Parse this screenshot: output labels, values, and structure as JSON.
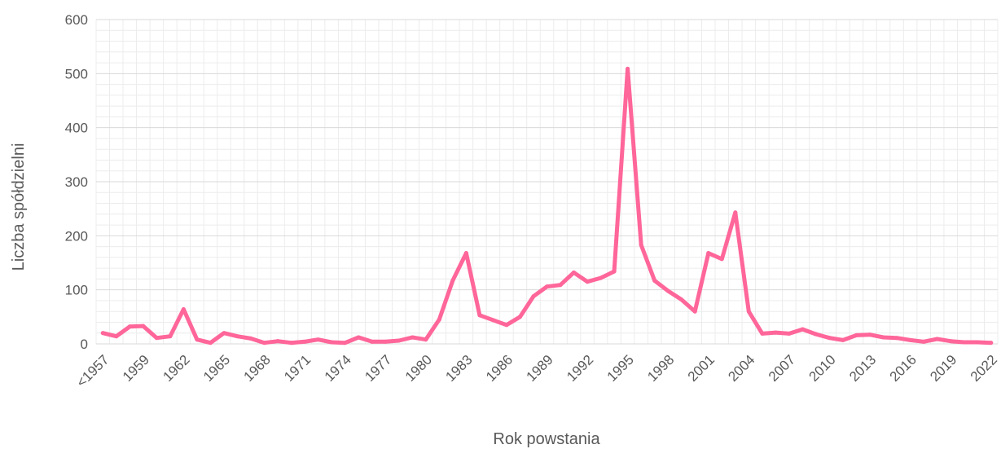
{
  "chart_data": {
    "type": "line",
    "title": "",
    "xlabel": "Rok powstania",
    "ylabel": "Liczba spółdzielni",
    "ylim": [
      0,
      600
    ],
    "yticks": [
      0,
      100,
      200,
      300,
      400,
      500,
      600
    ],
    "grid": true,
    "legend": "none",
    "categories": [
      "<1957",
      "1957",
      "1958",
      "1959",
      "1960",
      "1961",
      "1962",
      "1963",
      "1964",
      "1965",
      "1966",
      "1967",
      "1968",
      "1969",
      "1970",
      "1971",
      "1972",
      "1973",
      "1974",
      "1975",
      "1976",
      "1977",
      "1978",
      "1979",
      "1980",
      "1981",
      "1982",
      "1983",
      "1984",
      "1985",
      "1986",
      "1987",
      "1988",
      "1989",
      "1990",
      "1991",
      "1992",
      "1993",
      "1994",
      "1995",
      "1996",
      "1997",
      "1998",
      "1999",
      "2000",
      "2001",
      "2002",
      "2003",
      "2004",
      "2005",
      "2006",
      "2007",
      "2008",
      "2009",
      "2010",
      "2011",
      "2012",
      "2013",
      "2014",
      "2015",
      "2016",
      "2017",
      "2018",
      "2019",
      "2020",
      "2021",
      "2022"
    ],
    "tick_labels": [
      "<1957",
      "1959",
      "1962",
      "1965",
      "1968",
      "1971",
      "1974",
      "1977",
      "1980",
      "1983",
      "1986",
      "1989",
      "1992",
      "1995",
      "1998",
      "2001",
      "2004",
      "2007",
      "2010",
      "2013",
      "2016",
      "2019",
      "2022"
    ],
    "series": [
      {
        "color": "#ff6699",
        "values": [
          20,
          14,
          32,
          33,
          11,
          14,
          64,
          8,
          2,
          20,
          14,
          10,
          2,
          5,
          2,
          4,
          8,
          3,
          2,
          12,
          4,
          4,
          6,
          12,
          8,
          45,
          117,
          168,
          53,
          44,
          35,
          50,
          88,
          106,
          109,
          132,
          115,
          122,
          134,
          509,
          183,
          117,
          98,
          82,
          60,
          168,
          157,
          243,
          60,
          19,
          21,
          19,
          27,
          18,
          11,
          7,
          16,
          17,
          12,
          11,
          7,
          4,
          9,
          5,
          3,
          3,
          2
        ]
      }
    ]
  }
}
